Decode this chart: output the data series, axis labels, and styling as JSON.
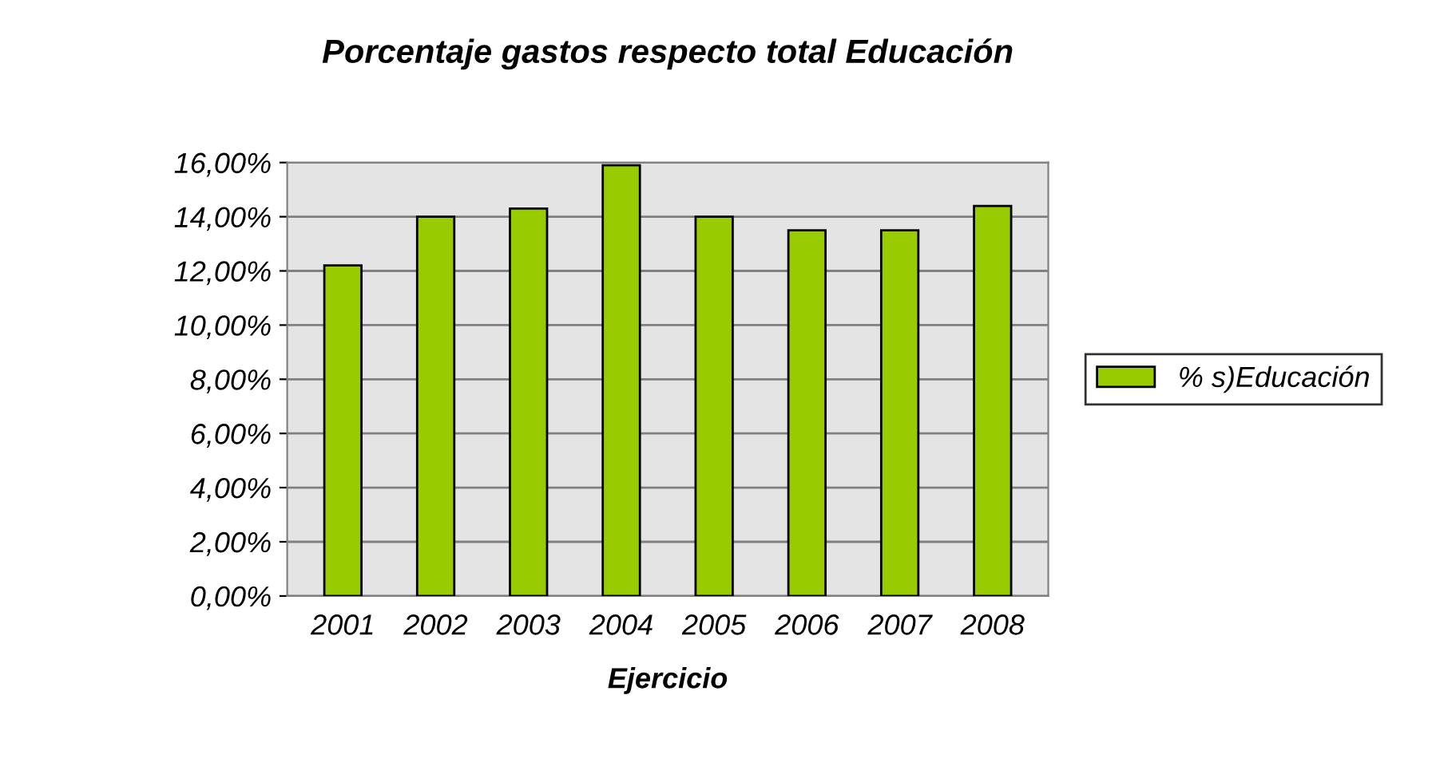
{
  "chart_data": {
    "type": "bar",
    "title": "Porcentaje gastos respecto total Educación",
    "xlabel": "Ejercicio",
    "categories": [
      "2001",
      "2002",
      "2003",
      "2004",
      "2005",
      "2006",
      "2007",
      "2008"
    ],
    "series": [
      {
        "name": "% s)Educación",
        "color": "#99cc00",
        "values": [
          12.2,
          14.0,
          14.3,
          15.9,
          14.0,
          13.5,
          13.5,
          14.4
        ]
      }
    ],
    "ylim": [
      0,
      16
    ],
    "yticks": [
      {
        "value": 0,
        "label": "0,00%"
      },
      {
        "value": 2,
        "label": "2,00%"
      },
      {
        "value": 4,
        "label": "4,00%"
      },
      {
        "value": 6,
        "label": "6,00%"
      },
      {
        "value": 8,
        "label": "8,00%"
      },
      {
        "value": 10,
        "label": "10,00%"
      },
      {
        "value": 12,
        "label": "12,00%"
      },
      {
        "value": 14,
        "label": "14,00%"
      },
      {
        "value": 16,
        "label": "16,00%"
      }
    ],
    "grid": "y",
    "legend": "right"
  }
}
